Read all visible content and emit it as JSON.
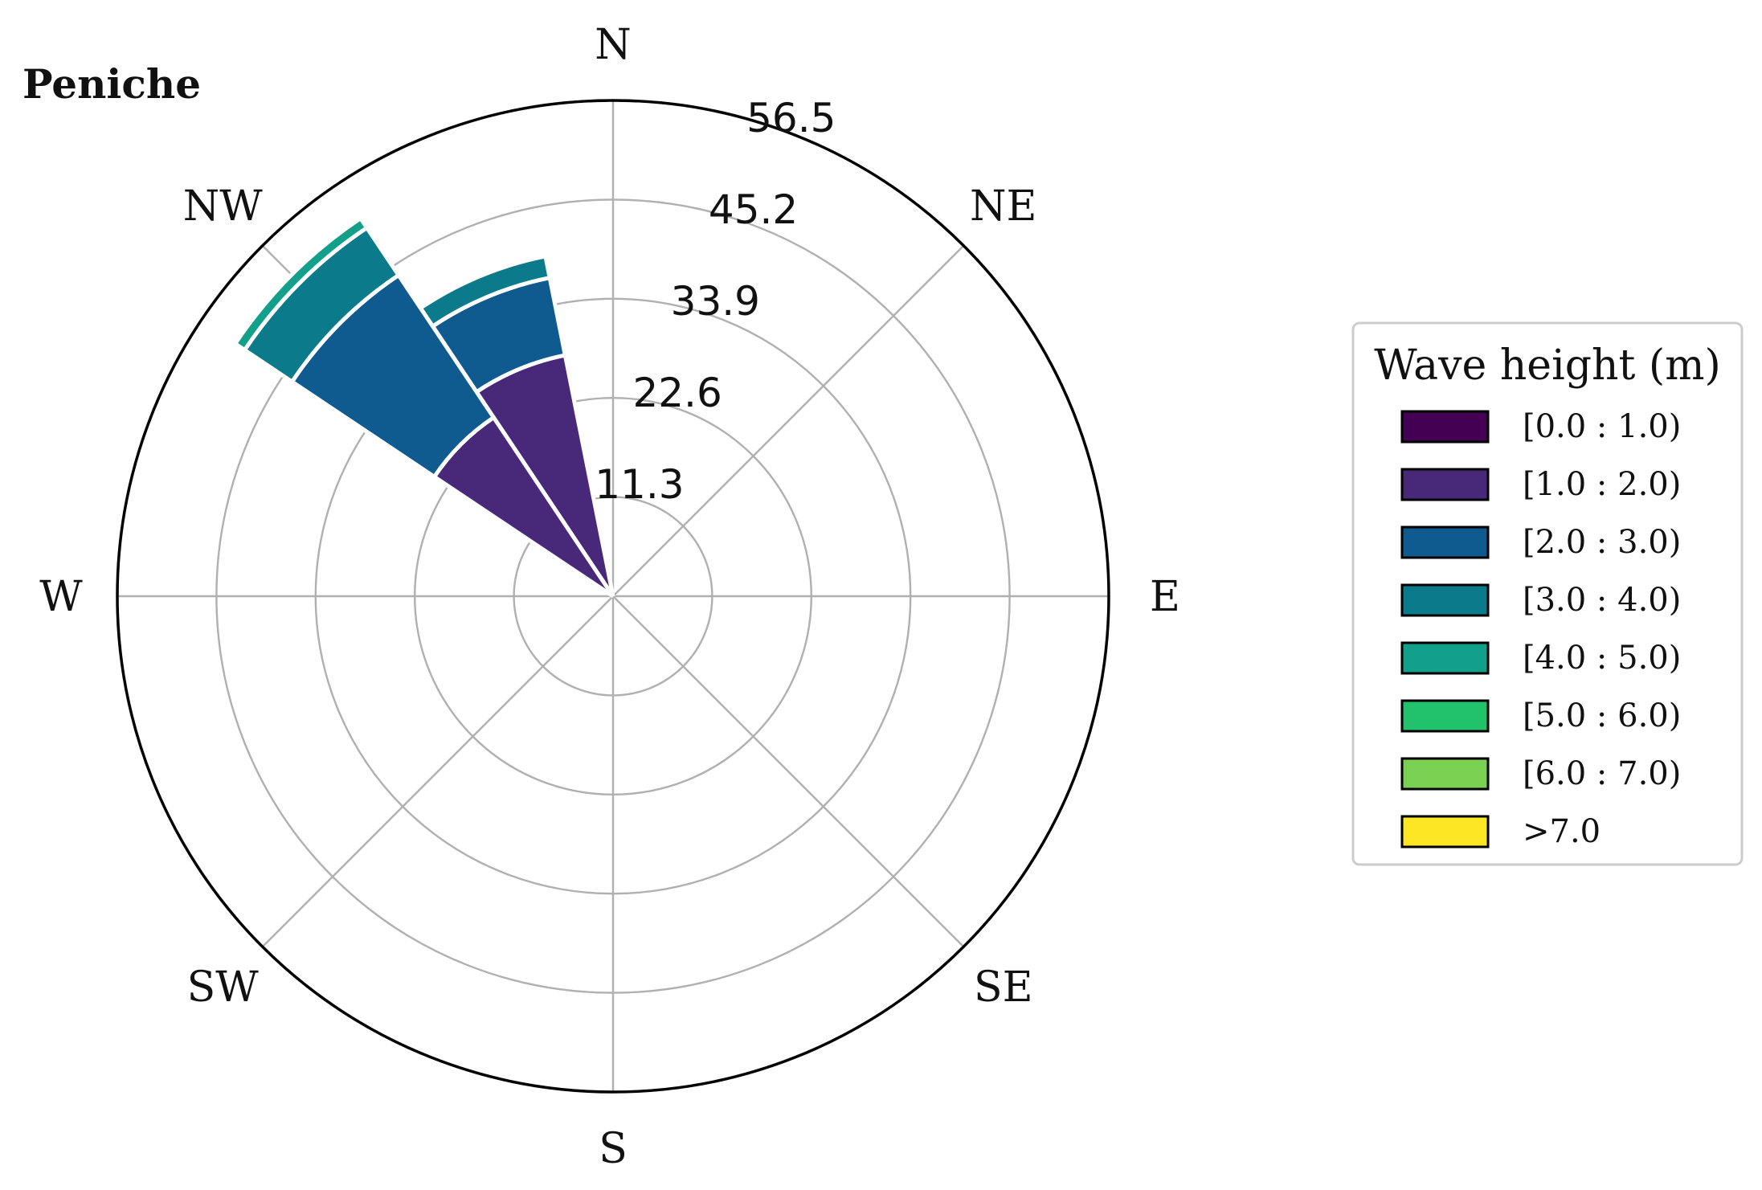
{
  "chart_data": {
    "type": "windrose",
    "title": "Peniche",
    "directions": [
      "N",
      "NE",
      "E",
      "SE",
      "S",
      "SW",
      "W",
      "NW"
    ],
    "radial_ticks": [
      "11.3",
      "22.6",
      "33.9",
      "45.2",
      "56.5"
    ],
    "rlim": [
      0,
      56.5
    ],
    "grid": true,
    "legend": {
      "title": "Wave height (m)",
      "placement": "right",
      "bins": [
        {
          "label": "[0.0 : 1.0)",
          "color": "#440154"
        },
        {
          "label": "[1.0 : 2.0)",
          "color": "#482878"
        },
        {
          "label": "[2.0 : 3.0)",
          "color": "#0f5a8e"
        },
        {
          "label": "[3.0 : 4.0)",
          "color": "#0b7a8a"
        },
        {
          "label": "[4.0 : 5.0)",
          "color": "#12a08a"
        },
        {
          "label": "[5.0 : 6.0)",
          "color": "#22c16b"
        },
        {
          "label": "[6.0 : 7.0)",
          "color": "#7ad151"
        },
        {
          "label": ">7.0",
          "color": "#fde725"
        }
      ]
    },
    "sectors": [
      {
        "center_deg": 337.5,
        "width_deg": 22.5,
        "cumulative": [
          0.5,
          28.0,
          37.0,
          39.5,
          39.5,
          39.5,
          39.5,
          39.5
        ]
      },
      {
        "center_deg": 315.0,
        "width_deg": 22.5,
        "cumulative": [
          0.5,
          24.5,
          44.0,
          50.5,
          51.8,
          51.8,
          51.8,
          51.8
        ]
      }
    ]
  }
}
